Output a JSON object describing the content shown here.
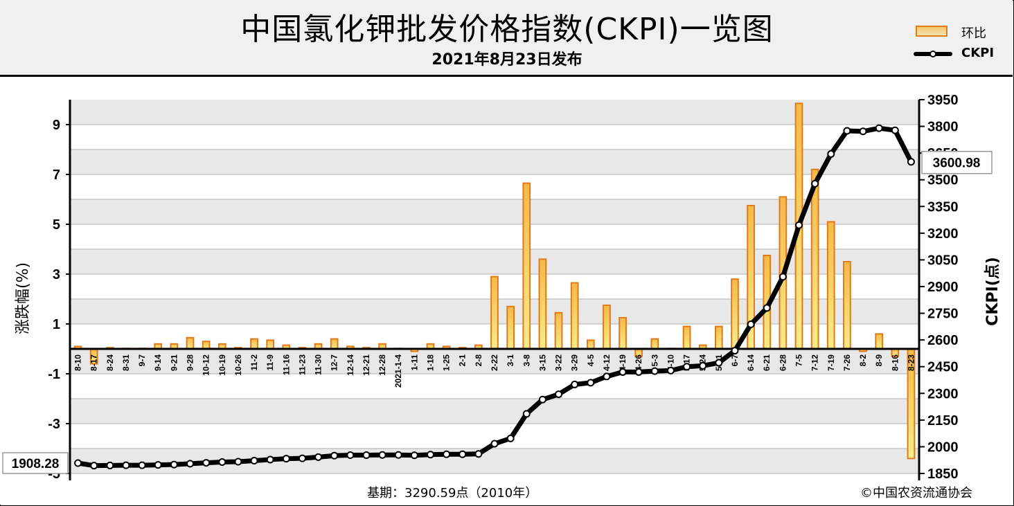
{
  "header": {
    "title": "中国氯化钾批发价格指数(CKPI)一览图",
    "subtitle": "2021年8月23日发布"
  },
  "legend": {
    "bar_label": "环比",
    "line_label": "CKPI"
  },
  "footer": {
    "base_note": "基期：3290.59点（2010年）",
    "copyright": "©中国农资流通协会"
  },
  "colors": {
    "bar_stroke": "#e07b1a",
    "bar_fill_top": "#f5b94a",
    "bar_fill_bottom": "#f7ec8a",
    "line": "#000000",
    "marker_fill": "#ffffff",
    "band": "#e8e8e8"
  },
  "chart_data": {
    "type": "bar+line",
    "categories": [
      "8-10",
      "8-17",
      "8-24",
      "8-31",
      "9-7",
      "9-14",
      "9-21",
      "9-28",
      "10-12",
      "10-19",
      "10-26",
      "11-2",
      "11-9",
      "11-16",
      "11-23",
      "11-30",
      "12-7",
      "12-14",
      "12-21",
      "12-28",
      "2021-1-4",
      "1-11",
      "1-18",
      "1-25",
      "2-1",
      "2-8",
      "2-22",
      "3-1",
      "3-8",
      "3-15",
      "3-22",
      "3-29",
      "4-5",
      "4-12",
      "4-19",
      "4-26",
      "5-3",
      "5-10",
      "5-17",
      "5-24",
      "5-31",
      "6-7",
      "6-14",
      "6-21",
      "6-28",
      "7-5",
      "7-12",
      "7-19",
      "7-26",
      "8-2",
      "8-9",
      "8-16",
      "8-23"
    ],
    "series": [
      {
        "name": "环比",
        "axis": "left",
        "values": [
          0.1,
          -0.6,
          0.05,
          0.02,
          0.02,
          0.2,
          0.2,
          0.45,
          0.3,
          0.2,
          0.05,
          0.4,
          0.35,
          0.15,
          0.05,
          0.2,
          0.4,
          0.1,
          0.05,
          0.2,
          0.02,
          -0.1,
          0.2,
          0.1,
          0.05,
          0.15,
          2.9,
          1.7,
          6.65,
          3.6,
          1.45,
          2.65,
          0.35,
          1.75,
          1.25,
          -0.3,
          0.4,
          0.02,
          0.9,
          0.15,
          0.9,
          2.8,
          5.75,
          3.75,
          6.1,
          9.85,
          7.2,
          5.1,
          3.5,
          -0.1,
          0.6,
          -0.3,
          -4.4
        ]
      },
      {
        "name": "CKPI",
        "axis": "right",
        "values": [
          1908.28,
          1894,
          1895,
          1896,
          1896,
          1898,
          1900,
          1905,
          1910,
          1914,
          1916,
          1922,
          1928,
          1933,
          1935,
          1942,
          1950,
          1953,
          1953,
          1954,
          1954,
          1952,
          1956,
          1958,
          1958,
          1960,
          2017,
          2047,
          2185,
          2265,
          2295,
          2350,
          2360,
          2395,
          2420,
          2420,
          2425,
          2428,
          2450,
          2455,
          2472,
          2540,
          2688,
          2780,
          2955,
          3245,
          3478,
          3645,
          3775,
          3772,
          3790,
          3778,
          3600.98
        ]
      }
    ],
    "y_left": {
      "label": "涨跌幅(%)",
      "range": [
        -5,
        10
      ],
      "ticks": [
        9,
        7,
        5,
        3,
        1,
        -1,
        -3,
        -5
      ]
    },
    "y_right": {
      "label": "CKPI(点)",
      "range": [
        1850,
        3950
      ],
      "ticks": [
        3950,
        3800,
        3650,
        3500,
        3350,
        3200,
        3050,
        2900,
        2750,
        2600,
        2450,
        2300,
        2150,
        2000,
        1850
      ]
    },
    "annotations": [
      {
        "text": "1908.28",
        "side": "left"
      },
      {
        "text": "3600.98",
        "side": "right"
      }
    ],
    "grid": true,
    "legend_position": "top-right"
  }
}
